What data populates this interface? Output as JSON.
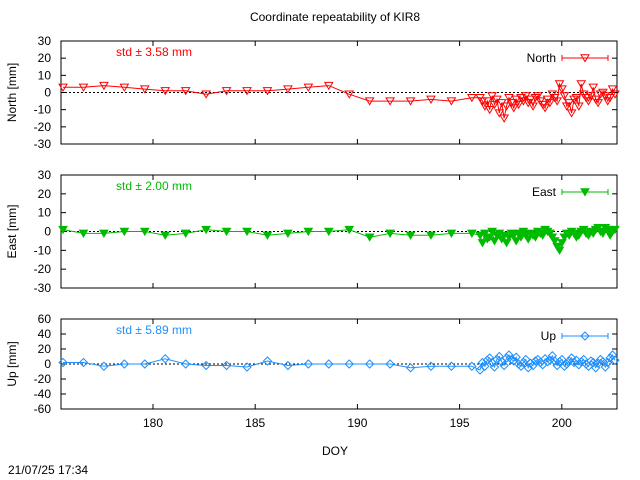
{
  "title": "Coordinate repeatability of KIR8",
  "timestamp": "21/07/25 17:34",
  "xlabel": "DOY",
  "colors": {
    "north": "#ff0000",
    "east": "#00bb00",
    "up": "#1e90ff"
  },
  "chart_data": [
    {
      "type": "line",
      "id": "north",
      "ylabel": "North [mm]",
      "legend": "North",
      "legend_position": "top-right",
      "std_label": "std ± 3.58 mm",
      "marker": "triangle-down-open",
      "ylim": [
        -30,
        30
      ],
      "yticks": [
        -30,
        -20,
        -10,
        0,
        10,
        20,
        30
      ],
      "xlim": [
        175.5,
        202.7
      ],
      "xticks": [
        180,
        185,
        190,
        195,
        200
      ],
      "zero_line": true,
      "dense_start": 196.0,
      "x": [
        175.6,
        176.6,
        177.6,
        178.6,
        179.6,
        180.6,
        181.6,
        182.6,
        183.6,
        184.6,
        185.6,
        186.6,
        187.6,
        188.6,
        189.6,
        190.6,
        191.6,
        192.6,
        193.6,
        194.6,
        195.6
      ],
      "y": [
        3,
        3,
        4,
        3,
        2,
        1,
        1,
        -1,
        1,
        1,
        1,
        2,
        3,
        4,
        -1,
        -5,
        -5,
        -5,
        -4,
        -5,
        -3
      ],
      "dense_y": [
        -3,
        -5,
        -8,
        -5,
        -10,
        -2,
        -7,
        -4,
        -12,
        -6,
        -15,
        -8,
        -3,
        -6,
        -9,
        -4,
        -7,
        -3,
        -5,
        -2,
        -6,
        -4,
        -8,
        -3,
        -2,
        -5,
        -7,
        -9,
        -4,
        -6,
        -1,
        -3,
        -5,
        5,
        2,
        -2,
        -8,
        -6,
        -12,
        -4,
        -3,
        -8,
        5,
        -1,
        -3,
        -5,
        -2,
        3,
        -4,
        -6,
        -1,
        0,
        -2,
        -5,
        -3,
        2,
        -1
      ]
    },
    {
      "type": "line",
      "id": "east",
      "ylabel": "East [mm]",
      "legend": "East",
      "legend_position": "top-right",
      "std_label": "std ± 2.00 mm",
      "marker": "triangle-down-filled",
      "ylim": [
        -30,
        30
      ],
      "yticks": [
        -30,
        -20,
        -10,
        0,
        10,
        20,
        30
      ],
      "xlim": [
        175.5,
        202.7
      ],
      "xticks": [
        180,
        185,
        190,
        195,
        200
      ],
      "zero_line": true,
      "dense_start": 196.0,
      "x": [
        175.6,
        176.6,
        177.6,
        178.6,
        179.6,
        180.6,
        181.6,
        182.6,
        183.6,
        184.6,
        185.6,
        186.6,
        187.6,
        188.6,
        189.6,
        190.6,
        191.6,
        192.6,
        193.6,
        194.6,
        195.6
      ],
      "y": [
        1,
        -1,
        -1,
        0,
        0,
        -2,
        -1,
        1,
        0,
        0,
        -2,
        -1,
        0,
        0,
        1,
        -3,
        -1,
        -2,
        -2,
        -1,
        -1
      ],
      "dense_y": [
        -2,
        -6,
        -1,
        -4,
        -3,
        0,
        -5,
        -2,
        -1,
        -4,
        -2,
        -6,
        -3,
        -1,
        -2,
        -5,
        -1,
        -3,
        0,
        -2,
        -4,
        -1,
        -2,
        -3,
        0,
        -1,
        -2,
        1,
        0,
        -1,
        -3,
        -5,
        -8,
        -10,
        -6,
        -3,
        -1,
        -2,
        0,
        -1,
        -3,
        -2,
        0,
        1,
        -1,
        -2,
        0,
        -1,
        1,
        2,
        0,
        -1,
        2,
        1,
        -2,
        0,
        1
      ]
    },
    {
      "type": "line",
      "id": "up",
      "ylabel": "Up [mm]",
      "legend": "Up",
      "legend_position": "top-right",
      "std_label": "std ± 5.89 mm",
      "marker": "diamond-open",
      "ylim": [
        -60,
        60
      ],
      "yticks": [
        -60,
        -40,
        -20,
        0,
        20,
        40,
        60
      ],
      "xlim": [
        175.5,
        202.7
      ],
      "xticks": [
        180,
        185,
        190,
        195,
        200
      ],
      "zero_line": true,
      "dense_start": 196.0,
      "x": [
        175.6,
        176.6,
        177.6,
        178.6,
        179.6,
        180.6,
        181.6,
        182.6,
        183.6,
        184.6,
        185.6,
        186.6,
        187.6,
        188.6,
        189.6,
        190.6,
        191.6,
        192.6,
        193.6,
        194.6,
        195.6
      ],
      "y": [
        2,
        2,
        -3,
        0,
        0,
        7,
        0,
        -2,
        -2,
        -4,
        4,
        -2,
        0,
        0,
        0,
        0,
        0,
        -5,
        -3,
        -3,
        -3
      ],
      "dense_y": [
        -8,
        2,
        -3,
        5,
        8,
        2,
        -4,
        6,
        10,
        3,
        -2,
        8,
        12,
        6,
        4,
        9,
        0,
        -3,
        2,
        6,
        -5,
        1,
        -2,
        4,
        6,
        2,
        -1,
        7,
        3,
        5,
        11,
        4,
        -2,
        3,
        6,
        -3,
        0,
        4,
        8,
        2,
        5,
        -1,
        3,
        6,
        0,
        -3,
        4,
        2,
        -5,
        1,
        6,
        3,
        -4,
        2,
        8,
        12,
        5
      ]
    }
  ]
}
